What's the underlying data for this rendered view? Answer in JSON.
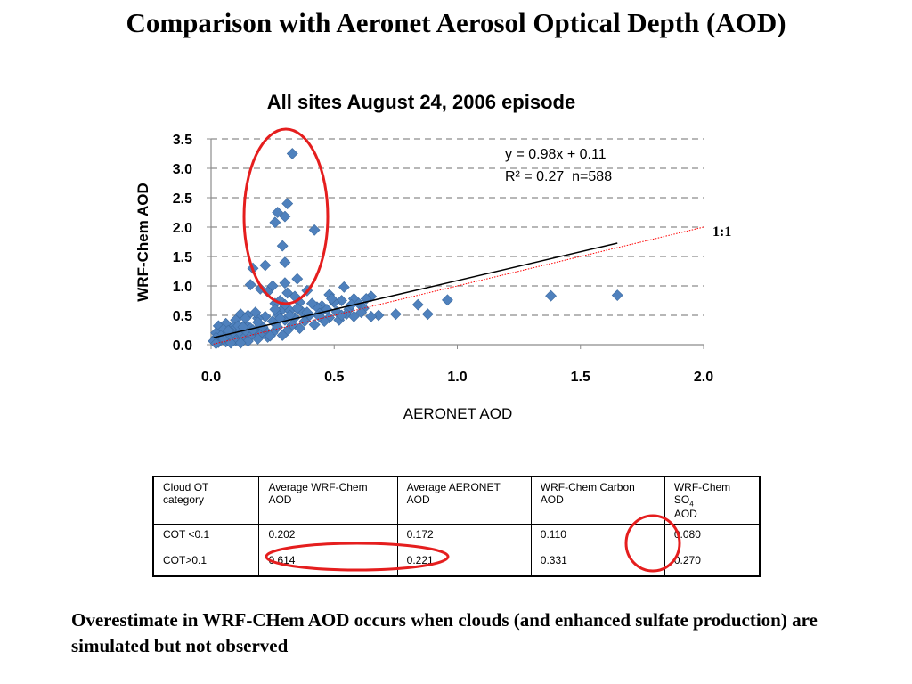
{
  "slide": {
    "title": "Comparison with Aeronet Aerosol Optical Depth (AOD)",
    "conclusion": "Overestimate in WRF-CHem AOD occurs when clouds (and enhanced sulfate production) are simulated but not observed"
  },
  "chart_data": {
    "type": "scatter",
    "title": "All sites August 24, 2006 episode",
    "xlabel": "AERONET AOD",
    "ylabel": "WRF-Chem AOD",
    "xlim": [
      0,
      2.0
    ],
    "ylim": [
      0,
      3.5
    ],
    "xticks": [
      "0.0",
      "0.5",
      "1.0",
      "1.5",
      "2.0"
    ],
    "yticks": [
      "0.0",
      "0.5",
      "1.0",
      "1.5",
      "2.0",
      "2.5",
      "3.0",
      "3.5"
    ],
    "grid": "horizontal dashed",
    "marker_color": "#4F81BD",
    "regression": {
      "equation": "y = 0.98x + 0.11",
      "stats": "R² = 0.27  n=588",
      "slope": 0.98,
      "intercept": 0.11,
      "x_range": [
        0.01,
        1.65
      ],
      "color": "#000000"
    },
    "one_to_one": {
      "label": "1:1",
      "x_range": [
        0.01,
        2.0
      ],
      "color": "#FF0000"
    },
    "highlight_ellipse_color": "#E51E1E",
    "points": [
      [
        0.33,
        3.25
      ],
      [
        0.31,
        2.4
      ],
      [
        0.27,
        2.25
      ],
      [
        0.3,
        2.18
      ],
      [
        0.26,
        2.08
      ],
      [
        0.42,
        1.95
      ],
      [
        0.29,
        1.68
      ],
      [
        0.3,
        1.4
      ],
      [
        0.22,
        1.35
      ],
      [
        0.17,
        1.3
      ],
      [
        0.35,
        1.12
      ],
      [
        0.3,
        1.05
      ],
      [
        0.16,
        1.02
      ],
      [
        0.25,
        1.0
      ],
      [
        0.54,
        0.98
      ],
      [
        0.2,
        0.95
      ],
      [
        0.39,
        0.92
      ],
      [
        0.31,
        0.88
      ],
      [
        0.48,
        0.85
      ],
      [
        0.34,
        0.82
      ],
      [
        0.65,
        0.82
      ],
      [
        0.63,
        0.78
      ],
      [
        0.58,
        0.78
      ],
      [
        0.53,
        0.75
      ],
      [
        0.28,
        0.75
      ],
      [
        0.36,
        0.72
      ],
      [
        0.5,
        0.72
      ],
      [
        0.26,
        0.7
      ],
      [
        0.6,
        0.7
      ],
      [
        0.84,
        0.68
      ],
      [
        0.45,
        0.66
      ],
      [
        0.43,
        0.64
      ],
      [
        0.62,
        0.62
      ],
      [
        0.29,
        0.6
      ],
      [
        0.56,
        0.6
      ],
      [
        0.32,
        0.58
      ],
      [
        0.37,
        0.56
      ],
      [
        0.51,
        0.56
      ],
      [
        0.61,
        0.55
      ],
      [
        0.44,
        0.53
      ],
      [
        0.12,
        0.52
      ],
      [
        0.27,
        0.52
      ],
      [
        0.55,
        0.52
      ],
      [
        0.75,
        0.52
      ],
      [
        0.88,
        0.52
      ],
      [
        0.68,
        0.5
      ],
      [
        0.15,
        0.5
      ],
      [
        0.4,
        0.5
      ],
      [
        0.58,
        0.48
      ],
      [
        0.22,
        0.48
      ],
      [
        0.65,
        0.48
      ],
      [
        0.34,
        0.46
      ],
      [
        0.48,
        0.46
      ],
      [
        0.19,
        0.45
      ],
      [
        0.1,
        0.42
      ],
      [
        0.52,
        0.42
      ],
      [
        0.3,
        0.42
      ],
      [
        0.38,
        0.4
      ],
      [
        0.46,
        0.4
      ],
      [
        0.25,
        0.4
      ],
      [
        0.06,
        0.36
      ],
      [
        0.14,
        0.35
      ],
      [
        0.33,
        0.34
      ],
      [
        0.42,
        0.34
      ],
      [
        0.2,
        0.33
      ],
      [
        0.03,
        0.32
      ],
      [
        0.09,
        0.3
      ],
      [
        0.27,
        0.3
      ],
      [
        0.16,
        0.28
      ],
      [
        0.36,
        0.28
      ],
      [
        0.05,
        0.26
      ],
      [
        0.12,
        0.25
      ],
      [
        0.22,
        0.24
      ],
      [
        0.31,
        0.24
      ],
      [
        0.08,
        0.22
      ],
      [
        0.18,
        0.22
      ],
      [
        0.02,
        0.2
      ],
      [
        0.14,
        0.2
      ],
      [
        0.25,
        0.2
      ],
      [
        0.06,
        0.18
      ],
      [
        0.11,
        0.18
      ],
      [
        0.2,
        0.17
      ],
      [
        0.29,
        0.16
      ],
      [
        0.04,
        0.15
      ],
      [
        0.09,
        0.14
      ],
      [
        0.16,
        0.14
      ],
      [
        0.23,
        0.13
      ],
      [
        0.02,
        0.12
      ],
      [
        0.07,
        0.11
      ],
      [
        0.13,
        0.1
      ],
      [
        0.19,
        0.1
      ],
      [
        0.04,
        0.08
      ],
      [
        0.1,
        0.07
      ],
      [
        0.01,
        0.06
      ],
      [
        0.06,
        0.05
      ],
      [
        0.15,
        0.06
      ],
      [
        0.03,
        0.04
      ],
      [
        0.08,
        0.03
      ],
      [
        0.12,
        0.03
      ],
      [
        0.02,
        0.02
      ],
      [
        0.17,
        0.25
      ],
      [
        0.21,
        0.3
      ],
      [
        0.24,
        0.15
      ],
      [
        0.28,
        0.45
      ],
      [
        0.32,
        0.5
      ],
      [
        0.14,
        0.45
      ],
      [
        0.18,
        0.55
      ],
      [
        0.11,
        0.32
      ],
      [
        0.26,
        0.6
      ],
      [
        0.35,
        0.62
      ],
      [
        0.41,
        0.7
      ],
      [
        0.47,
        0.6
      ],
      [
        0.96,
        0.76
      ],
      [
        1.38,
        0.83
      ],
      [
        1.65,
        0.84
      ],
      [
        0.57,
        0.68
      ],
      [
        0.49,
        0.78
      ],
      [
        0.44,
        0.48
      ],
      [
        0.39,
        0.55
      ],
      [
        0.53,
        0.5
      ],
      [
        0.3,
        0.68
      ],
      [
        0.23,
        0.9
      ],
      [
        0.19,
        0.38
      ],
      [
        0.07,
        0.24
      ],
      [
        0.13,
        0.3
      ],
      [
        0.05,
        0.1
      ]
    ]
  },
  "table": {
    "headers": [
      "Cloud OT category",
      "Average WRF-Chem AOD",
      "Average AERONET AOD",
      "WRF-Chem Carbon AOD",
      "WRF-Chem SO",
      "4",
      "AOD"
    ],
    "rows": [
      [
        "COT <0.1",
        "0.202",
        "0.172",
        "0.110",
        "0.080"
      ],
      [
        "COT>0.1",
        "0.614",
        "0.221",
        "0.331",
        "0.270"
      ]
    ],
    "highlight_color": "#E51E1E"
  }
}
